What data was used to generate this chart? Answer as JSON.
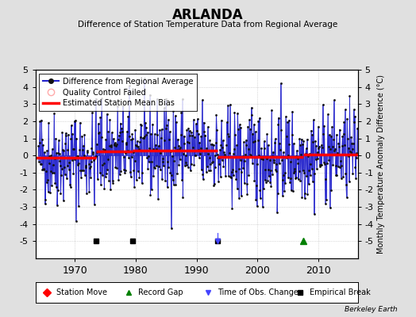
{
  "title": "ARLANDA",
  "subtitle": "Difference of Station Temperature Data from Regional Average",
  "ylabel_right": "Monthly Temperature Anomaly Difference (°C)",
  "xlim": [
    1963.5,
    2016.5
  ],
  "ylim": [
    -6,
    5
  ],
  "yticks": [
    -6,
    -5,
    -4,
    -3,
    -2,
    -1,
    0,
    1,
    2,
    3,
    4,
    5
  ],
  "xticks": [
    1970,
    1980,
    1990,
    2000,
    2010
  ],
  "bg_color": "#e0e0e0",
  "plot_bg_color": "#ffffff",
  "line_color": "#2222cc",
  "line_fill_color": "#8888dd",
  "dot_color": "#111111",
  "bias_color": "#ff0000",
  "grid_color": "#bbbbbb",
  "segment_biases": [
    {
      "start": 1963.5,
      "end": 1973.5,
      "bias": -0.15
    },
    {
      "start": 1973.5,
      "end": 1979.5,
      "bias": 0.25
    },
    {
      "start": 1979.5,
      "end": 1993.5,
      "bias": 0.3
    },
    {
      "start": 1993.5,
      "end": 2007.5,
      "bias": -0.1
    },
    {
      "start": 2007.5,
      "end": 2016.5,
      "bias": 0.05
    }
  ],
  "empirical_breaks": [
    1973.5,
    1979.5,
    1993.5
  ],
  "record_gaps": [
    2007.5
  ],
  "obs_changes": [
    1993.5
  ],
  "obs_change_line_end": 1996.0,
  "station_moves": [],
  "watermark": "Berkeley Earth",
  "seed": 42,
  "n_months": 630,
  "start_year": 1964.0
}
